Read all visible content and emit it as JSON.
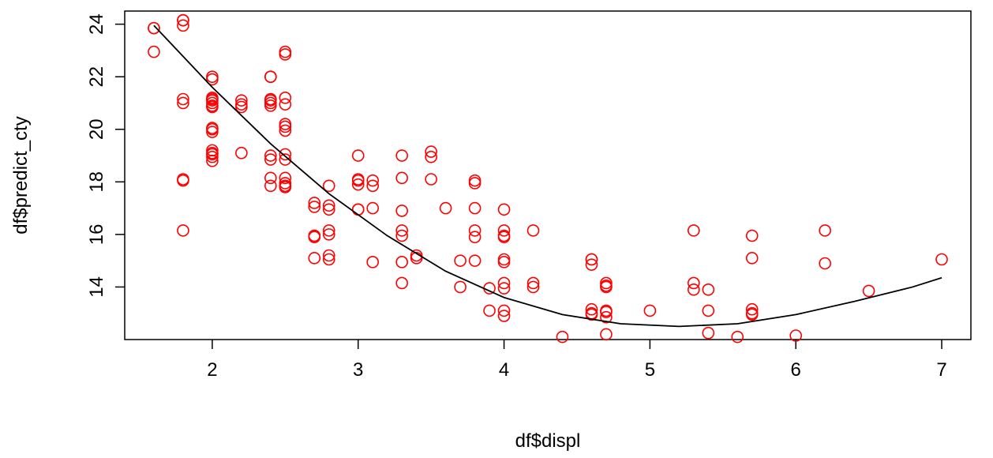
{
  "chart_data": {
    "type": "scatter",
    "title": "",
    "xlabel": "df$displ",
    "ylabel": "df$predict_cty",
    "xlim": [
      1.4,
      7.2
    ],
    "ylim": [
      12.0,
      24.5
    ],
    "xticks": [
      2,
      3,
      4,
      5,
      6,
      7
    ],
    "yticks": [
      14,
      16,
      18,
      20,
      22,
      24
    ],
    "grid": false,
    "legend": "none",
    "point_color": "#ff0000",
    "line_color": "#000000",
    "series": [
      {
        "type": "scatter",
        "x": [
          1.6,
          1.6,
          1.6,
          1.8,
          1.8,
          1.8,
          1.8,
          1.8,
          1.8,
          1.8,
          1.8,
          2.0,
          2.0,
          2.0,
          2.0,
          2.0,
          2.0,
          2.0,
          2.0,
          2.0,
          2.0,
          2.0,
          2.0,
          2.0,
          2.0,
          2.0,
          2.0,
          2.2,
          2.2,
          2.2,
          2.2,
          2.4,
          2.4,
          2.4,
          2.4,
          2.4,
          2.4,
          2.4,
          2.4,
          2.4,
          2.4,
          2.5,
          2.5,
          2.5,
          2.5,
          2.5,
          2.5,
          2.5,
          2.5,
          2.5,
          2.5,
          2.5,
          2.5,
          2.5,
          2.5,
          2.7,
          2.7,
          2.7,
          2.7,
          2.7,
          2.7,
          2.8,
          2.8,
          2.8,
          2.8,
          2.8,
          2.8,
          2.8,
          3.0,
          3.0,
          3.0,
          3.0,
          3.0,
          3.0,
          3.1,
          3.1,
          3.1,
          3.1,
          3.3,
          3.3,
          3.3,
          3.3,
          3.3,
          3.3,
          3.3,
          3.4,
          3.4,
          3.5,
          3.5,
          3.5,
          3.6,
          3.7,
          3.7,
          3.8,
          3.8,
          3.8,
          3.8,
          3.8,
          3.8,
          3.9,
          3.9,
          4.0,
          4.0,
          4.0,
          4.0,
          4.0,
          4.0,
          4.0,
          4.0,
          4.0,
          4.0,
          4.2,
          4.2,
          4.2,
          4.4,
          4.6,
          4.6,
          4.6,
          4.6,
          4.6,
          4.6,
          4.7,
          4.7,
          4.7,
          4.7,
          4.7,
          4.7,
          4.7,
          5.0,
          5.3,
          5.3,
          5.3,
          5.4,
          5.4,
          5.4,
          5.6,
          5.7,
          5.7,
          5.7,
          5.7,
          5.7,
          6.0,
          6.2,
          6.2,
          6.5,
          7.0
        ],
        "y": [
          22.95,
          23.85,
          23.85,
          24.15,
          23.95,
          24.15,
          21.15,
          21.0,
          18.1,
          18.05,
          16.15,
          21.2,
          21.15,
          20.9,
          21.0,
          21.1,
          22.0,
          21.9,
          20.05,
          19.9,
          20.0,
          19.2,
          19.05,
          18.95,
          18.8,
          19.1,
          20.85,
          21.1,
          20.95,
          20.85,
          19.1,
          22.0,
          22.0,
          21.15,
          21.0,
          20.9,
          21.1,
          19.0,
          18.85,
          17.85,
          18.15,
          22.85,
          22.95,
          21.2,
          20.95,
          20.2,
          20.1,
          19.95,
          19.05,
          18.85,
          17.95,
          17.85,
          17.8,
          18.15,
          17.85,
          17.2,
          17.05,
          15.95,
          15.9,
          15.95,
          15.1,
          17.85,
          17.1,
          16.95,
          16.15,
          16.0,
          15.2,
          15.05,
          19.0,
          18.1,
          18.05,
          17.9,
          16.95,
          16.95,
          18.05,
          17.85,
          17.0,
          14.95,
          19.0,
          18.15,
          16.15,
          15.95,
          14.95,
          14.15,
          16.9,
          15.1,
          15.2,
          19.15,
          18.95,
          18.1,
          17.0,
          15.0,
          14.0,
          18.05,
          17.95,
          17.0,
          15.9,
          16.15,
          15.0,
          13.1,
          13.95,
          16.95,
          16.15,
          15.95,
          15.9,
          15.05,
          14.95,
          14.15,
          13.95,
          13.1,
          12.9,
          16.15,
          14.15,
          14.0,
          12.1,
          15.05,
          15.05,
          14.85,
          13.15,
          13.0,
          12.95,
          14.15,
          14.05,
          14.0,
          13.1,
          13.05,
          12.85,
          12.2,
          13.1,
          16.15,
          14.15,
          13.9,
          13.9,
          13.1,
          12.25,
          12.1,
          15.95,
          15.1,
          13.15,
          13.0,
          12.95,
          12.15,
          16.15,
          14.9,
          13.85,
          15.05
        ],
        "color": "#ff0000"
      },
      {
        "type": "line",
        "x": [
          1.6,
          2.0,
          2.4,
          2.8,
          3.2,
          3.6,
          4.0,
          4.4,
          4.8,
          5.2,
          5.6,
          6.0,
          6.4,
          6.8,
          7.0
        ],
        "y": [
          23.95,
          21.6,
          19.45,
          17.55,
          15.95,
          14.6,
          13.6,
          12.95,
          12.6,
          12.5,
          12.6,
          12.95,
          13.45,
          14.0,
          14.35
        ],
        "color": "#000000"
      }
    ]
  }
}
